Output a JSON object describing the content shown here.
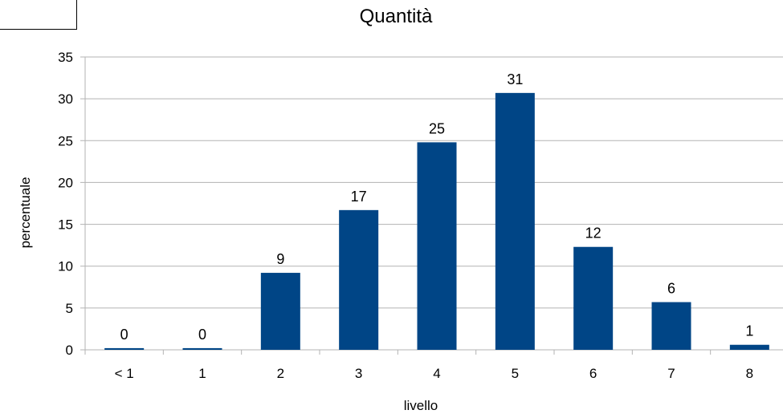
{
  "chart_data": {
    "type": "bar",
    "title": "Quantità",
    "xlabel": "livello",
    "ylabel": "percentuale",
    "categories": [
      "< 1",
      "1",
      "2",
      "3",
      "4",
      "5",
      "6",
      "7",
      "8"
    ],
    "values": [
      0.2,
      0.2,
      9.2,
      16.7,
      24.8,
      30.7,
      12.3,
      5.7,
      0.6
    ],
    "data_labels": [
      "0",
      "0",
      "9",
      "17",
      "25",
      "31",
      "12",
      "6",
      "1"
    ],
    "ylim": [
      0,
      35
    ],
    "yticks": [
      0,
      5,
      10,
      15,
      20,
      25,
      30,
      35
    ],
    "grid": true,
    "legend": "none",
    "bar_color": "#004586"
  }
}
